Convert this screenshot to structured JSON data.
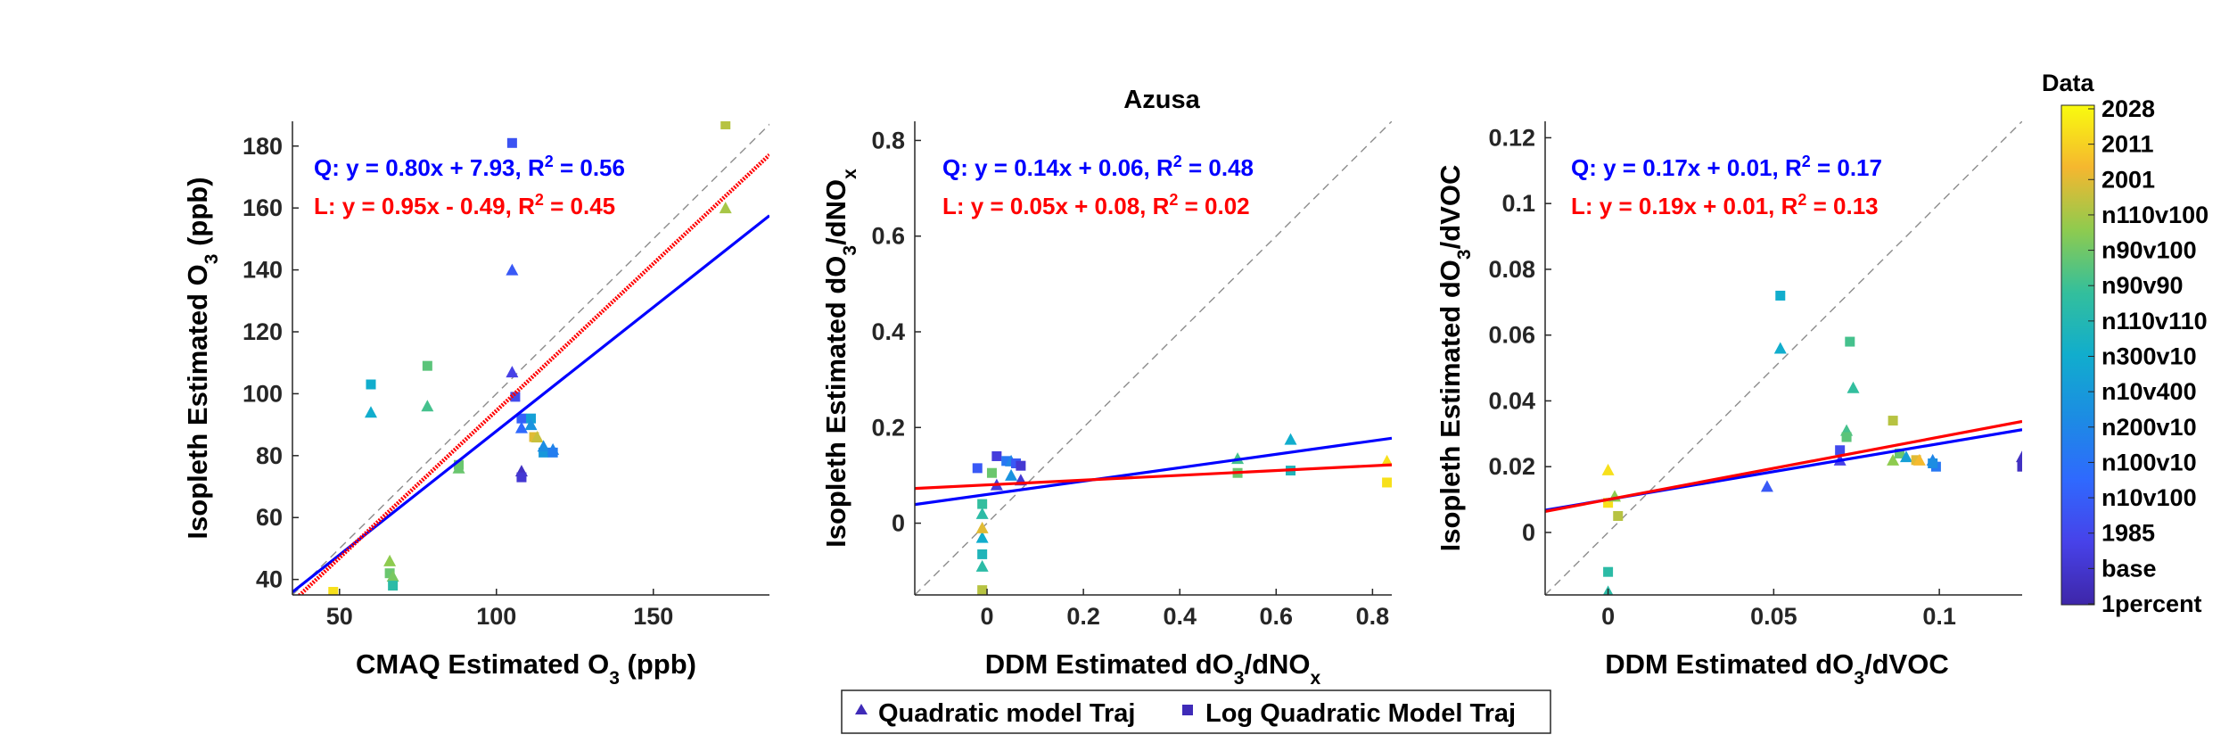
{
  "figure_title": "Azusa",
  "chart_data": [
    {
      "type": "scatter",
      "xlabel": "CMAQ Estimated O",
      "xlabel_sub": "3",
      "xlabel_suffix": " (ppb)",
      "ylabel": "Isopleth Estimated O",
      "ylabel_sub": "3",
      "ylabel_suffix": " (ppb)",
      "xlim": [
        35,
        187
      ],
      "ylim": [
        35,
        188
      ],
      "xticks": [
        50,
        100,
        150
      ],
      "xtick_labels": [
        "50",
        "100",
        "150"
      ],
      "yticks": [
        40,
        60,
        80,
        100,
        120,
        140,
        160,
        180
      ],
      "ytick_labels": [
        "40",
        "60",
        "80",
        "100",
        "120",
        "140",
        "160",
        "180"
      ],
      "annotations": [
        {
          "prefix": "Q: y = 0.80x + 7.93, R",
          "sup": "2",
          "suffix": " = 0.56",
          "color": "#0000ff"
        },
        {
          "prefix": "L: y = 0.95x - 0.49, R",
          "sup": "2",
          "suffix": " = 0.45",
          "color": "#ff0000"
        }
      ],
      "fits": [
        {
          "name": "Q",
          "slope": 0.8,
          "intercept": 7.93,
          "color": "#0000ff",
          "style": "solid"
        },
        {
          "name": "L",
          "slope": 0.95,
          "intercept": -0.49,
          "color": "#ff0000",
          "style": "dotted-thick"
        }
      ],
      "points": [
        {
          "x": 48,
          "y": 36,
          "m": "s",
          "c": 0.95
        },
        {
          "x": 48,
          "y": 35,
          "m": "t",
          "c": 0.95
        },
        {
          "x": 60,
          "y": 103,
          "m": "s",
          "c": 0.5
        },
        {
          "x": 60,
          "y": 94,
          "m": "t",
          "c": 0.5
        },
        {
          "x": 66,
          "y": 46,
          "m": "t",
          "c": 0.75
        },
        {
          "x": 66,
          "y": 42,
          "m": "s",
          "c": 0.7
        },
        {
          "x": 67,
          "y": 41,
          "m": "t",
          "c": 0.72
        },
        {
          "x": 67,
          "y": 38,
          "m": "s",
          "c": 0.6
        },
        {
          "x": 78,
          "y": 109,
          "m": "s",
          "c": 0.68
        },
        {
          "x": 78,
          "y": 96,
          "m": "t",
          "c": 0.65
        },
        {
          "x": 88,
          "y": 77,
          "m": "s",
          "c": 0.7
        },
        {
          "x": 88,
          "y": 76,
          "m": "t",
          "c": 0.7
        },
        {
          "x": 105,
          "y": 181,
          "m": "s",
          "c": 0.18
        },
        {
          "x": 105,
          "y": 140,
          "m": "t",
          "c": 0.2
        },
        {
          "x": 105,
          "y": 107,
          "m": "t",
          "c": 0.12
        },
        {
          "x": 106,
          "y": 99,
          "m": "s",
          "c": 0.15
        },
        {
          "x": 108,
          "y": 92,
          "m": "s",
          "c": 0.22
        },
        {
          "x": 108,
          "y": 89,
          "m": "t",
          "c": 0.25
        },
        {
          "x": 108,
          "y": 75,
          "m": "t",
          "c": 0.05
        },
        {
          "x": 108,
          "y": 73,
          "m": "s",
          "c": 0.08
        },
        {
          "x": 111,
          "y": 92,
          "m": "s",
          "c": 0.45
        },
        {
          "x": 111,
          "y": 90,
          "m": "t",
          "c": 0.4
        },
        {
          "x": 112,
          "y": 86,
          "m": "s",
          "c": 0.85
        },
        {
          "x": 113,
          "y": 86,
          "m": "t",
          "c": 0.82
        },
        {
          "x": 115,
          "y": 81,
          "m": "s",
          "c": 0.42
        },
        {
          "x": 115,
          "y": 83,
          "m": "t",
          "c": 0.38
        },
        {
          "x": 118,
          "y": 82,
          "m": "t",
          "c": 0.35
        },
        {
          "x": 118,
          "y": 81,
          "m": "s",
          "c": 0.32
        },
        {
          "x": 173,
          "y": 187,
          "m": "s",
          "c": 0.8
        },
        {
          "x": 173,
          "y": 160,
          "m": "t",
          "c": 0.78
        }
      ]
    },
    {
      "type": "scatter",
      "title": "Azusa",
      "xlabel": "DDM Estimated dO",
      "xlabel_sub": "3",
      "xlabel_suffix": "/dNO",
      "xlabel_sub2": "x",
      "ylabel": "Isopleth Estimated dO",
      "ylabel_sub": "3",
      "ylabel_suffix": "/dNO",
      "ylabel_sub2": "x",
      "xlim": [
        -0.15,
        0.84
      ],
      "ylim": [
        -0.15,
        0.84
      ],
      "xticks": [
        0,
        0.2,
        0.4,
        0.6,
        0.8
      ],
      "xtick_labels": [
        "0",
        "0.2",
        "0.4",
        "0.6",
        "0.8"
      ],
      "yticks": [
        0,
        0.2,
        0.4,
        0.6,
        0.8
      ],
      "ytick_labels": [
        "0",
        "0.2",
        "0.4",
        "0.6",
        "0.8"
      ],
      "annotations": [
        {
          "prefix": "Q: y = 0.14x + 0.06, R",
          "sup": "2",
          "suffix": " = 0.48",
          "color": "#0000ff"
        },
        {
          "prefix": "L: y = 0.05x + 0.08, R",
          "sup": "2",
          "suffix": " = 0.02",
          "color": "#ff0000"
        }
      ],
      "fits": [
        {
          "name": "Q",
          "slope": 0.14,
          "intercept": 0.06,
          "color": "#0000ff",
          "style": "solid"
        },
        {
          "name": "L",
          "slope": 0.05,
          "intercept": 0.08,
          "color": "#ff0000",
          "style": "solid"
        }
      ],
      "points": [
        {
          "x": -0.01,
          "y": -0.14,
          "m": "s",
          "c": 0.8
        },
        {
          "x": -0.01,
          "y": -0.09,
          "m": "t",
          "c": 0.6
        },
        {
          "x": -0.01,
          "y": -0.065,
          "m": "s",
          "c": 0.55
        },
        {
          "x": -0.01,
          "y": -0.03,
          "m": "t",
          "c": 0.5
        },
        {
          "x": -0.01,
          "y": -0.01,
          "m": "t",
          "c": 0.85
        },
        {
          "x": -0.01,
          "y": 0.02,
          "m": "t",
          "c": 0.6
        },
        {
          "x": -0.01,
          "y": 0.04,
          "m": "s",
          "c": 0.62
        },
        {
          "x": -0.02,
          "y": 0.115,
          "m": "s",
          "c": 0.2
        },
        {
          "x": 0.01,
          "y": 0.105,
          "m": "s",
          "c": 0.7
        },
        {
          "x": 0.02,
          "y": 0.08,
          "m": "t",
          "c": 0.1
        },
        {
          "x": 0.02,
          "y": 0.14,
          "m": "s",
          "c": 0.1
        },
        {
          "x": 0.04,
          "y": 0.13,
          "m": "s",
          "c": 0.3
        },
        {
          "x": 0.05,
          "y": 0.13,
          "m": "t",
          "c": 0.35
        },
        {
          "x": 0.05,
          "y": 0.1,
          "m": "t",
          "c": 0.4
        },
        {
          "x": 0.06,
          "y": 0.125,
          "m": "s",
          "c": 0.2
        },
        {
          "x": 0.07,
          "y": 0.12,
          "m": "s",
          "c": 0.08
        },
        {
          "x": 0.07,
          "y": 0.09,
          "m": "t",
          "c": 0.08
        },
        {
          "x": 0.52,
          "y": 0.135,
          "m": "t",
          "c": 0.65
        },
        {
          "x": 0.52,
          "y": 0.105,
          "m": "s",
          "c": 0.7
        },
        {
          "x": 0.63,
          "y": 0.175,
          "m": "t",
          "c": 0.5
        },
        {
          "x": 0.63,
          "y": 0.11,
          "m": "s",
          "c": 0.55
        },
        {
          "x": 0.83,
          "y": 0.13,
          "m": "t",
          "c": 0.95
        },
        {
          "x": 0.83,
          "y": 0.085,
          "m": "s",
          "c": 0.95
        }
      ]
    },
    {
      "type": "scatter",
      "xlabel": "DDM Estimated dO",
      "xlabel_sub": "3",
      "xlabel_suffix": "/dVOC",
      "ylabel": "Isopleth Estimated dO",
      "ylabel_sub": "3",
      "ylabel_suffix": "/dVOC",
      "xlim": [
        -0.019,
        0.125
      ],
      "ylim": [
        -0.019,
        0.125
      ],
      "xticks": [
        0,
        0.05,
        0.1
      ],
      "xtick_labels": [
        "0",
        "0.05",
        "0.1"
      ],
      "yticks": [
        0,
        0.02,
        0.04,
        0.06,
        0.08,
        0.1,
        0.12
      ],
      "ytick_labels": [
        "0",
        "0.02",
        "0.04",
        "0.06",
        "0.08",
        "0.1",
        "0.12"
      ],
      "annotations": [
        {
          "prefix": "Q: y = 0.17x + 0.01, R",
          "sup": "2",
          "suffix": " = 0.17",
          "color": "#0000ff"
        },
        {
          "prefix": "L: y = 0.19x + 0.01, R",
          "sup": "2",
          "suffix": " = 0.13",
          "color": "#ff0000"
        }
      ],
      "fits": [
        {
          "name": "Q",
          "slope": 0.17,
          "intercept": 0.01,
          "color": "#0000ff",
          "style": "solid"
        },
        {
          "name": "L",
          "slope": 0.19,
          "intercept": 0.01,
          "color": "#ff0000",
          "style": "solid"
        }
      ],
      "points": [
        {
          "x": 0.0,
          "y": -0.018,
          "m": "t",
          "c": 0.6
        },
        {
          "x": 0.0,
          "y": -0.012,
          "m": "s",
          "c": 0.6
        },
        {
          "x": 0.0,
          "y": 0.019,
          "m": "t",
          "c": 0.95
        },
        {
          "x": 0.0,
          "y": 0.009,
          "m": "s",
          "c": 0.95
        },
        {
          "x": 0.002,
          "y": 0.011,
          "m": "t",
          "c": 0.75
        },
        {
          "x": 0.003,
          "y": 0.005,
          "m": "s",
          "c": 0.8
        },
        {
          "x": 0.048,
          "y": 0.014,
          "m": "t",
          "c": 0.2
        },
        {
          "x": 0.052,
          "y": 0.072,
          "m": "s",
          "c": 0.5
        },
        {
          "x": 0.052,
          "y": 0.056,
          "m": "t",
          "c": 0.5
        },
        {
          "x": 0.07,
          "y": 0.025,
          "m": "s",
          "c": 0.15
        },
        {
          "x": 0.07,
          "y": 0.022,
          "m": "t",
          "c": 0.12
        },
        {
          "x": 0.072,
          "y": 0.031,
          "m": "t",
          "c": 0.65
        },
        {
          "x": 0.072,
          "y": 0.029,
          "m": "s",
          "c": 0.68
        },
        {
          "x": 0.073,
          "y": 0.058,
          "m": "s",
          "c": 0.65
        },
        {
          "x": 0.074,
          "y": 0.044,
          "m": "t",
          "c": 0.62
        },
        {
          "x": 0.086,
          "y": 0.034,
          "m": "s",
          "c": 0.8
        },
        {
          "x": 0.086,
          "y": 0.022,
          "m": "t",
          "c": 0.75
        },
        {
          "x": 0.088,
          "y": 0.024,
          "m": "s",
          "c": 0.7
        },
        {
          "x": 0.09,
          "y": 0.023,
          "m": "t",
          "c": 0.45
        },
        {
          "x": 0.093,
          "y": 0.022,
          "m": "s",
          "c": 0.85
        },
        {
          "x": 0.094,
          "y": 0.022,
          "m": "t",
          "c": 0.88
        },
        {
          "x": 0.098,
          "y": 0.022,
          "m": "t",
          "c": 0.35
        },
        {
          "x": 0.099,
          "y": 0.02,
          "m": "s",
          "c": 0.3
        },
        {
          "x": 0.098,
          "y": 0.021,
          "m": "s",
          "c": 0.38
        },
        {
          "x": 0.125,
          "y": 0.023,
          "m": "t",
          "c": 0.05
        },
        {
          "x": 0.125,
          "y": 0.02,
          "m": "s",
          "c": 0.05
        }
      ]
    }
  ],
  "legend": {
    "items": [
      {
        "label": "Quadratic model Traj",
        "marker": "triangle"
      },
      {
        "label": "Log Quadratic Model Traj",
        "marker": "square"
      }
    ],
    "marker_color": "#3f2bb8"
  },
  "colorbar": {
    "title": "Data",
    "labels": [
      "2028",
      "2011",
      "2001",
      "n110v100",
      "n90v100",
      "n90v90",
      "n110v110",
      "n300v10",
      "n10v400",
      "n200v10",
      "n100v10",
      "n10v100",
      "1985",
      "base",
      "1percent"
    ],
    "colormap": "parula"
  },
  "colors": {
    "axis": "#262626",
    "identity_line": "#8c8c8c"
  }
}
